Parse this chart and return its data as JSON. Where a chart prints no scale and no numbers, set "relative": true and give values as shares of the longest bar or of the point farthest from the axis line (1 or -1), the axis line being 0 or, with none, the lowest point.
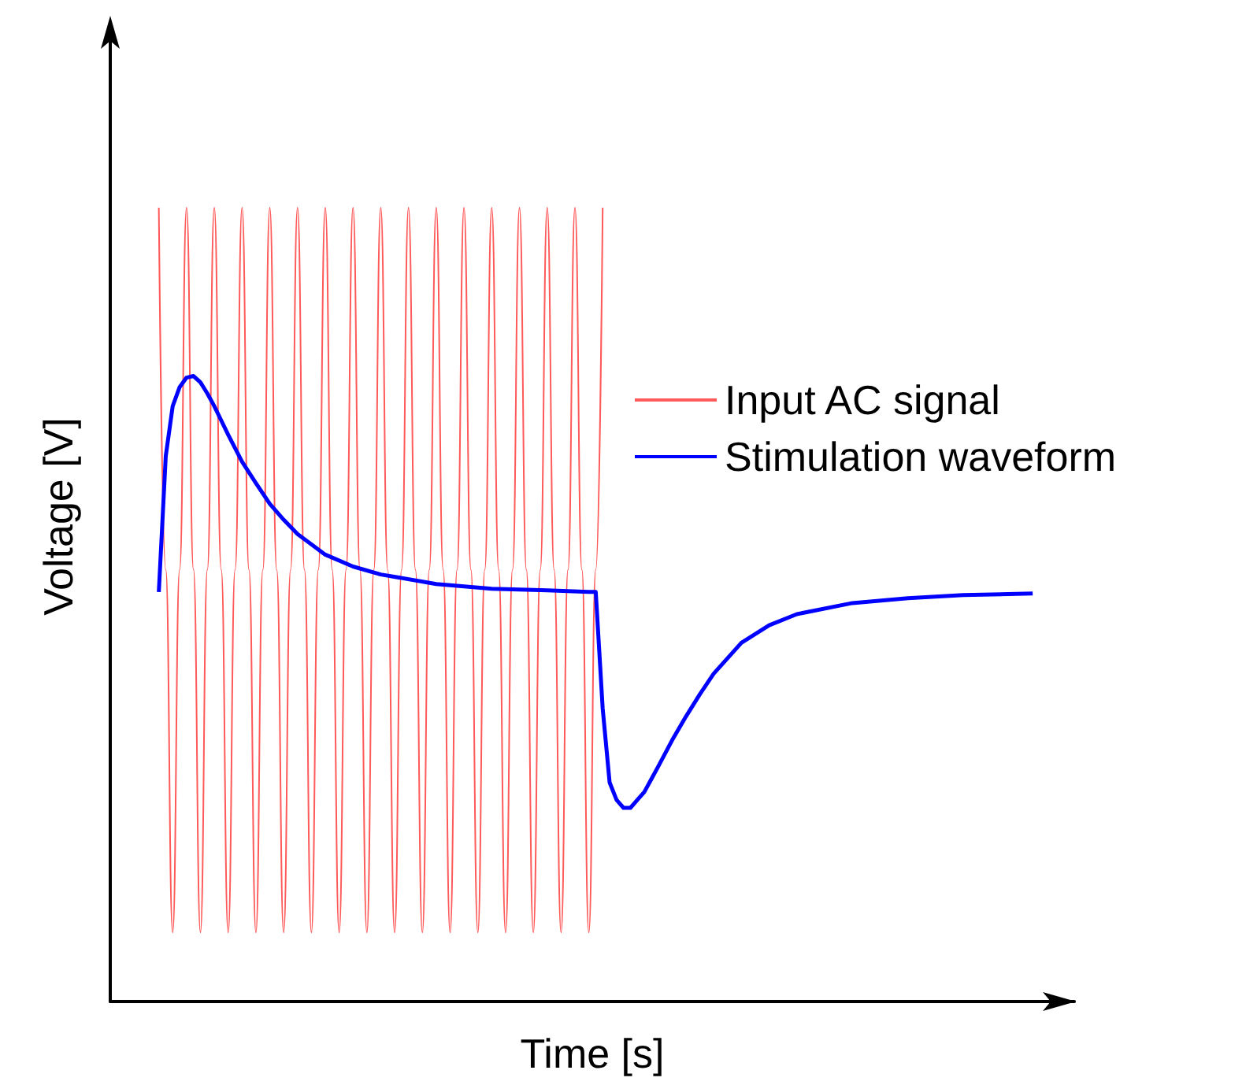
{
  "chart_data": {
    "type": "line",
    "relative": true,
    "xlabel": "Time [s]",
    "ylabel": "Voltage [V]",
    "legend": "right",
    "line_style": "solid",
    "grid": false,
    "categories": [
      null,
      null,
      null,
      null,
      null,
      null,
      null,
      null,
      null,
      null,
      null,
      null,
      null,
      null,
      null,
      null,
      null,
      null,
      null,
      null,
      null,
      null,
      null,
      null,
      null,
      null,
      null,
      null,
      null,
      null,
      null,
      null,
      null,
      null,
      null,
      null,
      null,
      null,
      null,
      null,
      null,
      null,
      null,
      null,
      null,
      null,
      null,
      null,
      null,
      null,
      null,
      null,
      null,
      null,
      null,
      null,
      null,
      null,
      null,
      null,
      null,
      null,
      null,
      null,
      null,
      null,
      null,
      null,
      null,
      null,
      null,
      null,
      null,
      null,
      null,
      null,
      null,
      null,
      null,
      null,
      null,
      null,
      null,
      null,
      null,
      null,
      null,
      null,
      null,
      null,
      null,
      null,
      null,
      null,
      null,
      null,
      null,
      null,
      null,
      null,
      null,
      null,
      null,
      null,
      null,
      null,
      null,
      null,
      null,
      null,
      null,
      null,
      null,
      null,
      null,
      null,
      null,
      null,
      null,
      null,
      null,
      null,
      null,
      null,
      null,
      null,
      null,
      null,
      null,
      null,
      null,
      null,
      null,
      null,
      null,
      null,
      null,
      null,
      null,
      null
    ],
    "series": [
      {
        "name": "Input AC signal",
        "color": "#ff5a5a",
        "values": [
          null,
          null,
          null,
          null,
          null,
          null,
          null,
          1,
          0.544,
          0.087,
          0.544,
          1,
          0.544,
          0.087,
          0.544,
          1,
          0.544,
          0.087,
          0.544,
          1,
          0.544,
          0.087,
          0.544,
          1,
          0.544,
          0.087,
          0.544,
          1,
          0.544,
          0.087,
          0.544,
          1,
          0.544,
          0.087,
          0.544,
          1,
          0.544,
          0.087,
          0.544,
          1,
          0.544,
          0.087,
          0.544,
          1,
          0.544,
          0.087,
          0.544,
          1,
          0.544,
          0.087,
          0.544,
          1,
          0.544,
          0.087,
          0.544,
          1,
          0.544,
          0.087,
          0.544,
          1,
          0.544,
          0.087,
          0.544,
          1,
          0.544,
          0.087,
          0.544,
          1,
          0.544,
          0.087,
          0.544,
          1,
          null,
          null,
          null,
          null,
          null,
          null,
          null,
          null,
          null,
          null,
          null,
          null,
          null,
          null,
          null,
          null,
          null,
          null,
          null,
          null,
          null,
          null,
          null,
          null,
          null,
          null,
          null,
          null,
          null,
          null,
          null,
          null,
          null,
          null,
          null,
          null,
          null,
          null,
          null,
          null,
          null,
          null,
          null,
          null,
          null,
          null,
          null,
          null,
          null,
          null,
          null,
          null,
          null,
          null,
          null,
          null,
          null,
          null,
          null,
          null,
          null,
          null,
          null,
          null,
          null,
          null,
          null,
          null
        ]
      },
      {
        "name": "Stimulation waveform",
        "color": "#0000ff",
        "values": [
          null,
          null,
          null,
          null,
          null,
          null,
          null,
          0.516,
          0.687,
          0.75,
          0.774,
          0.786,
          0.788,
          0.78,
          0.766,
          0.75,
          0.732,
          0.714,
          null,
          0.68,
          null,
          0.653,
          null,
          0.627,
          null,
          0.607,
          null,
          0.589,
          null,
          null,
          null,
          0.563,
          null,
          null,
          null,
          0.548,
          null,
          null,
          null,
          0.538,
          null,
          null,
          null,
          null,
          null,
          null,
          null,
          0.526,
          null,
          null,
          null,
          null,
          null,
          null,
          null,
          0.52,
          null,
          null,
          null,
          null,
          null,
          null,
          null,
          0.518,
          null,
          null,
          null,
          null,
          null,
          0.516,
          0.516,
          0.369,
          0.276,
          0.254,
          0.244,
          0.244,
          0.254,
          0.264,
          0.28,
          0.296,
          null,
          0.329,
          null,
          0.359,
          null,
          0.387,
          null,
          0.413,
          null,
          null,
          null,
          0.452,
          null,
          null,
          null,
          0.474,
          null,
          null,
          null,
          0.488,
          null,
          null,
          null,
          null,
          null,
          null,
          null,
          0.502,
          null,
          null,
          null,
          null,
          null,
          null,
          null,
          0.508,
          null,
          null,
          null,
          null,
          null,
          null,
          null,
          0.512,
          null,
          null,
          null,
          null,
          null,
          null,
          null,
          null,
          null,
          0.514,
          null,
          null,
          null,
          null,
          null,
          null
        ]
      }
    ]
  }
}
